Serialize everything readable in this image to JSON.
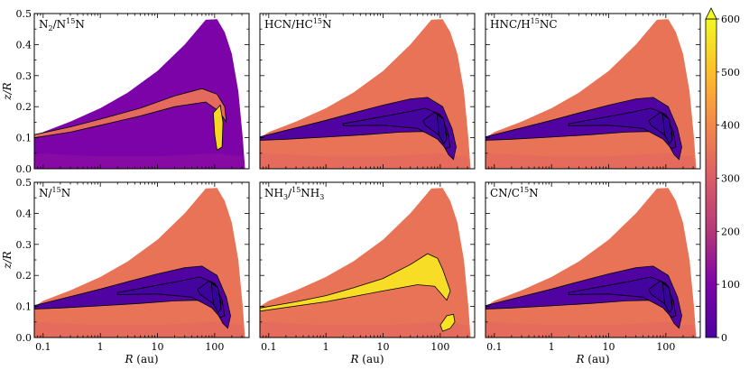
{
  "chart_data": {
    "type": "contour-map",
    "layout": "2x3 panel grid",
    "x": {
      "label_var": "R",
      "label_unit": " (au)",
      "scale": "log",
      "lim": [
        0.07,
        400
      ],
      "ticks": [
        0.1,
        1,
        10,
        100
      ],
      "tick_labels": [
        "0.1",
        "1",
        "10",
        "100"
      ]
    },
    "y": {
      "label": "z/R",
      "lim": [
        0,
        0.5
      ],
      "ticks": [
        0.0,
        0.1,
        0.2,
        0.3,
        0.4,
        0.5
      ],
      "tick_labels": [
        "0.0",
        "0.1",
        "0.2",
        "0.3",
        "0.4",
        "0.5"
      ]
    },
    "colorbar": {
      "min": 0,
      "max": 600,
      "extend": "max",
      "colormap": "plasma",
      "ticks": [
        0,
        100,
        200,
        300,
        400,
        500,
        600
      ],
      "tick_labels": [
        "0",
        "100",
        "200",
        "300",
        "400",
        "500",
        "600"
      ]
    },
    "contour_levels": [
      100,
      150,
      200,
      300
    ],
    "panels": [
      {
        "id": "n2",
        "title_html": "N<sub>2</sub>/N<sup>15</sup>N",
        "title_text": "N2/N15N",
        "background_value": 130,
        "midplane_value": 160,
        "feature_value": 380,
        "hotspot_value": 580,
        "mode": "enriched"
      },
      {
        "id": "hcn",
        "title_html": "HCN/HC<sup>15</sup>N",
        "title_text": "HCN/HC15N",
        "background_value": 400,
        "midplane_value": 380,
        "feature_value": 60,
        "hotspot_value": 30,
        "mode": "depleted"
      },
      {
        "id": "hnc",
        "title_html": "HNC/H<sup>15</sup>NC",
        "title_text": "HNC/H15NC",
        "background_value": 400,
        "midplane_value": 380,
        "feature_value": 60,
        "hotspot_value": 30,
        "mode": "depleted"
      },
      {
        "id": "n",
        "title_html": "N/<sup>15</sup>N",
        "title_text": "N/15N",
        "background_value": 400,
        "midplane_value": 380,
        "feature_value": 60,
        "hotspot_value": 30,
        "mode": "depleted"
      },
      {
        "id": "nh3",
        "title_html": "NH<sub>3</sub>/<sup>15</sup>NH<sub>3</sub>",
        "title_text": "NH3/15NH3",
        "background_value": 400,
        "midplane_value": 380,
        "feature_value": 590,
        "hotspot_value": 600,
        "mode": "nh3"
      },
      {
        "id": "cn",
        "title_html": "CN/C<sup>15</sup>N",
        "title_text": "CN/C15N",
        "background_value": 400,
        "midplane_value": 380,
        "feature_value": 60,
        "hotspot_value": 30,
        "mode": "depleted"
      }
    ]
  }
}
